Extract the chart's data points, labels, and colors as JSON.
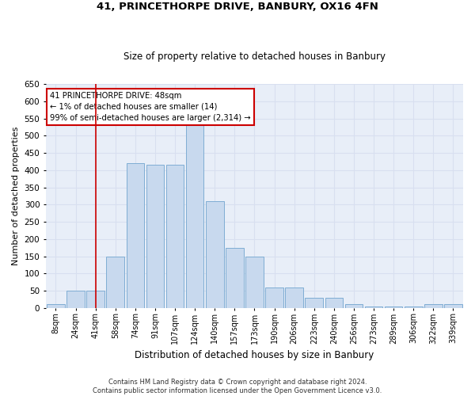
{
  "title": "41, PRINCETHORPE DRIVE, BANBURY, OX16 4FN",
  "subtitle": "Size of property relative to detached houses in Banbury",
  "xlabel": "Distribution of detached houses by size in Banbury",
  "ylabel": "Number of detached properties",
  "categories": [
    "8sqm",
    "24sqm",
    "41sqm",
    "58sqm",
    "74sqm",
    "91sqm",
    "107sqm",
    "124sqm",
    "140sqm",
    "157sqm",
    "173sqm",
    "190sqm",
    "206sqm",
    "223sqm",
    "240sqm",
    "256sqm",
    "273sqm",
    "289sqm",
    "306sqm",
    "322sqm",
    "339sqm"
  ],
  "values": [
    10,
    50,
    50,
    150,
    420,
    415,
    415,
    530,
    310,
    175,
    150,
    60,
    60,
    30,
    30,
    10,
    5,
    5,
    5,
    10,
    10
  ],
  "bar_color": "#c8d9ee",
  "bar_edge_color": "#7fadd4",
  "grid_color": "#d8dff0",
  "background_color": "#e8eef8",
  "vline_x_index": 2,
  "vline_color": "#cc0000",
  "annotation_text": "41 PRINCETHORPE DRIVE: 48sqm\n← 1% of detached houses are smaller (14)\n99% of semi-detached houses are larger (2,314) →",
  "annotation_box_color": "#ffffff",
  "annotation_box_edge": "#cc0000",
  "ylim": [
    0,
    650
  ],
  "yticks": [
    0,
    50,
    100,
    150,
    200,
    250,
    300,
    350,
    400,
    450,
    500,
    550,
    600,
    650
  ],
  "footer_line1": "Contains HM Land Registry data © Crown copyright and database right 2024.",
  "footer_line2": "Contains public sector information licensed under the Open Government Licence v3.0."
}
